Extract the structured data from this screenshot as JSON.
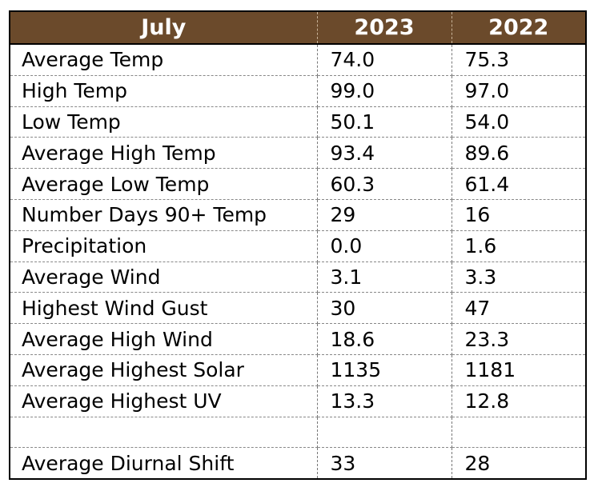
{
  "table": {
    "headers": [
      "July",
      "2023",
      "2022"
    ],
    "rows": [
      [
        "Average Temp",
        "74.0",
        "75.3"
      ],
      [
        "High Temp",
        "99.0",
        "97.0"
      ],
      [
        "Low Temp",
        "50.1",
        "54.0"
      ],
      [
        "Average High Temp",
        "93.4",
        "89.6"
      ],
      [
        "Average Low Temp",
        "60.3",
        "61.4"
      ],
      [
        "Number Days 90+ Temp",
        "29",
        "16"
      ],
      [
        "Precipitation",
        "0.0",
        "1.6"
      ],
      [
        "Average Wind",
        "3.1",
        "3.3"
      ],
      [
        "Highest Wind Gust",
        "30",
        "47"
      ],
      [
        "Average High Wind",
        "18.6",
        "23.3"
      ],
      [
        "Average Highest Solar",
        "1135",
        "1181"
      ],
      [
        "Average Highest UV",
        "13.3",
        "12.8"
      ],
      [
        "",
        "",
        ""
      ],
      [
        "Average Diurnal Shift",
        "33",
        "28"
      ]
    ]
  },
  "colors": {
    "header_bg": "#6b4a2b",
    "header_text": "#ffffff"
  }
}
